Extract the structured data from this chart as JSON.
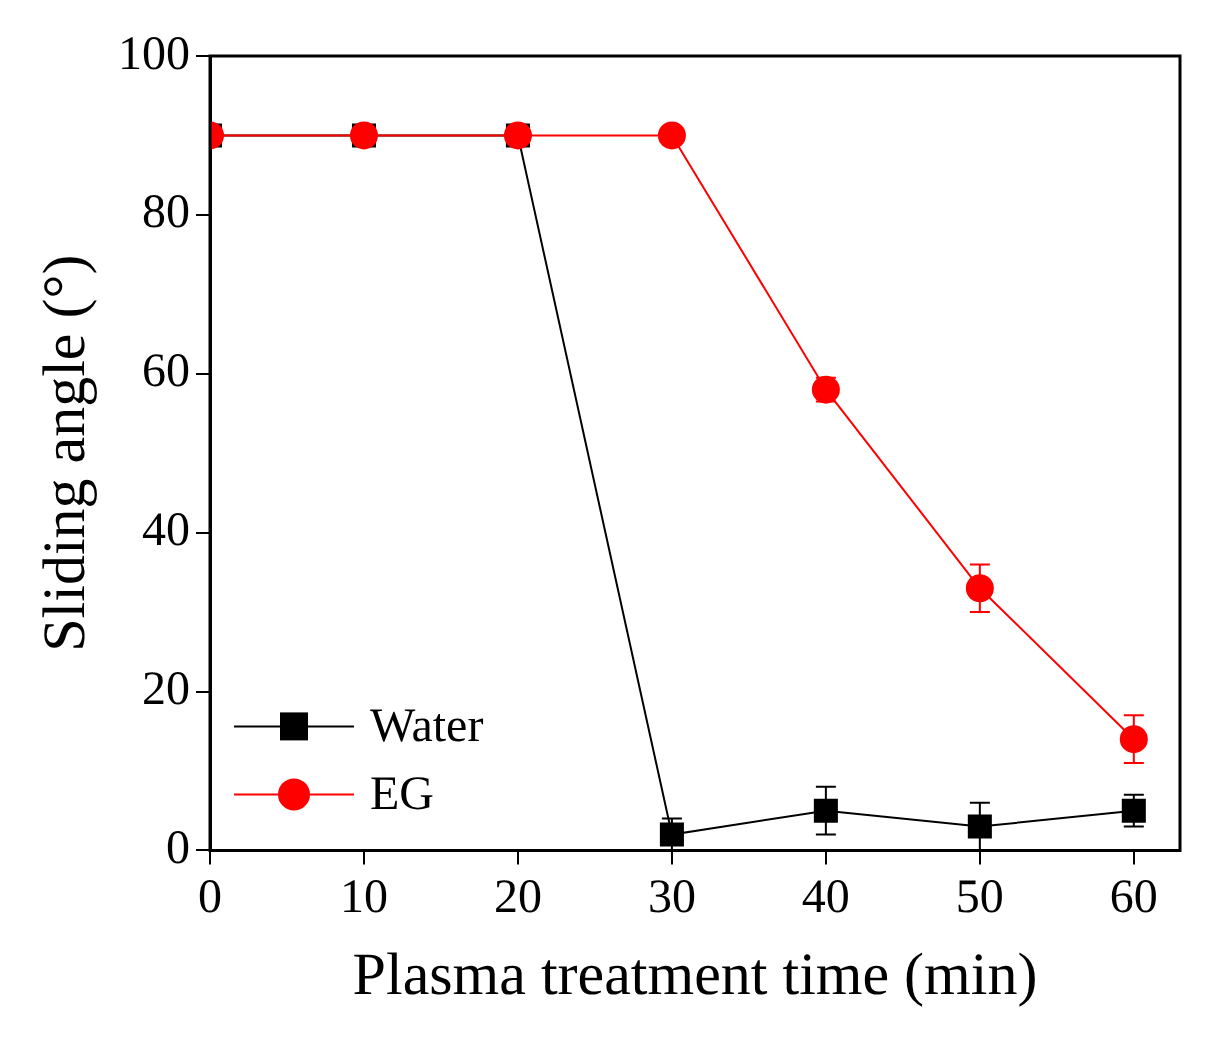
{
  "chart_data": {
    "type": "line",
    "xlabel": "Plasma treatment time (min)",
    "ylabel": "Sliding angle (°)",
    "x": [
      0,
      10,
      20,
      30,
      40,
      50,
      60
    ],
    "series": [
      {
        "name": "Water",
        "color": "#000000",
        "marker": "square",
        "values": [
          90,
          90,
          90,
          2,
          5,
          3,
          5
        ],
        "errors": [
          null,
          null,
          null,
          2,
          3,
          3,
          2
        ]
      },
      {
        "name": "EG",
        "color": "#ff0000",
        "marker": "circle",
        "values": [
          90,
          90,
          90,
          90,
          58,
          33,
          14
        ],
        "errors": [
          null,
          null,
          null,
          null,
          1.5,
          3,
          3
        ]
      }
    ],
    "xlim": [
      0,
      63
    ],
    "xticks": [
      0,
      10,
      20,
      30,
      40,
      50,
      60
    ],
    "ylim": [
      0,
      100
    ],
    "yticks": [
      0,
      20,
      40,
      60,
      80,
      100
    ],
    "grid": false,
    "legend": "bottom left"
  }
}
